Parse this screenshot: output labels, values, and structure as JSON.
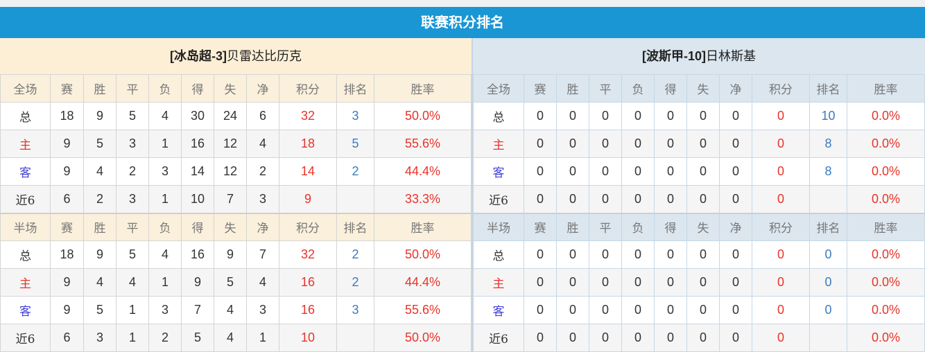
{
  "title": "联赛积分排名",
  "colors": {
    "accent": "#1a96d4",
    "points": "#e8332a",
    "rank": "#3a7bc0"
  },
  "columns": {
    "full": [
      "全场",
      "赛",
      "胜",
      "平",
      "负",
      "得",
      "失",
      "净",
      "积分",
      "排名",
      "胜率"
    ],
    "half": [
      "半场",
      "赛",
      "胜",
      "平",
      "负",
      "得",
      "失",
      "净",
      "积分",
      "排名",
      "胜率"
    ]
  },
  "teams": [
    {
      "league_tag": "[冰岛超-3]",
      "name": "贝雷达比历克",
      "full": [
        [
          "总",
          "18",
          "9",
          "5",
          "4",
          "30",
          "24",
          "6",
          "32",
          "3",
          "50.0%"
        ],
        [
          "主",
          "9",
          "5",
          "3",
          "1",
          "16",
          "12",
          "4",
          "18",
          "5",
          "55.6%"
        ],
        [
          "客",
          "9",
          "4",
          "2",
          "3",
          "14",
          "12",
          "2",
          "14",
          "2",
          "44.4%"
        ],
        [
          "近6",
          "6",
          "2",
          "3",
          "1",
          "10",
          "7",
          "3",
          "9",
          "",
          "33.3%"
        ]
      ],
      "half": [
        [
          "总",
          "18",
          "9",
          "5",
          "4",
          "16",
          "9",
          "7",
          "32",
          "2",
          "50.0%"
        ],
        [
          "主",
          "9",
          "4",
          "4",
          "1",
          "9",
          "5",
          "4",
          "16",
          "2",
          "44.4%"
        ],
        [
          "客",
          "9",
          "5",
          "1",
          "3",
          "7",
          "4",
          "3",
          "16",
          "3",
          "55.6%"
        ],
        [
          "近6",
          "6",
          "3",
          "1",
          "2",
          "5",
          "4",
          "1",
          "10",
          "",
          "50.0%"
        ]
      ]
    },
    {
      "league_tag": "[波斯甲-10]",
      "name": "日林斯基",
      "full": [
        [
          "总",
          "0",
          "0",
          "0",
          "0",
          "0",
          "0",
          "0",
          "0",
          "10",
          "0.0%"
        ],
        [
          "主",
          "0",
          "0",
          "0",
          "0",
          "0",
          "0",
          "0",
          "0",
          "8",
          "0.0%"
        ],
        [
          "客",
          "0",
          "0",
          "0",
          "0",
          "0",
          "0",
          "0",
          "0",
          "8",
          "0.0%"
        ],
        [
          "近6",
          "0",
          "0",
          "0",
          "0",
          "0",
          "0",
          "0",
          "0",
          "",
          "0.0%"
        ]
      ],
      "half": [
        [
          "总",
          "0",
          "0",
          "0",
          "0",
          "0",
          "0",
          "0",
          "0",
          "0",
          "0.0%"
        ],
        [
          "主",
          "0",
          "0",
          "0",
          "0",
          "0",
          "0",
          "0",
          "0",
          "0",
          "0.0%"
        ],
        [
          "客",
          "0",
          "0",
          "0",
          "0",
          "0",
          "0",
          "0",
          "0",
          "0",
          "0.0%"
        ],
        [
          "近6",
          "0",
          "0",
          "0",
          "0",
          "0",
          "0",
          "0",
          "0",
          "",
          "0.0%"
        ]
      ]
    }
  ]
}
